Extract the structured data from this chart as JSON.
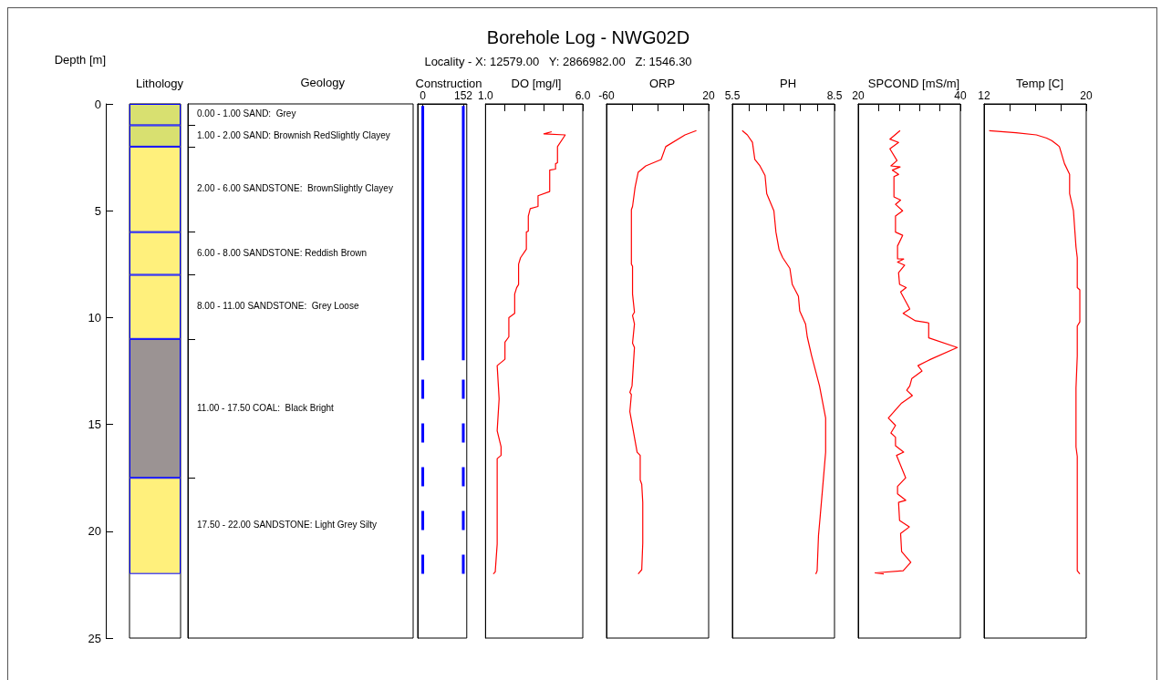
{
  "chart_data": [
    {
      "type": "other",
      "title": "Borehole Log - NWG02D",
      "subtitle": "Locality - X: 12579.00   Y: 2866982.00   Z: 1546.30"
    },
    {
      "type": "bar",
      "title": "Lithology",
      "ylabel": "Depth [m]",
      "stacked": true,
      "categories": [
        null
      ],
      "ylim": [
        25,
        0
      ],
      "yticks": [
        0,
        5,
        10,
        15,
        20,
        25
      ],
      "tick_labels": "y",
      "series": [
        {
          "color": "#d8e070",
          "values": [
            1
          ]
        },
        {
          "color": "#d8e070",
          "values": [
            1
          ]
        },
        {
          "color": "#fff07c",
          "values": [
            4
          ]
        },
        {
          "color": "#fff07c",
          "values": [
            2
          ]
        },
        {
          "color": "#fff07c",
          "values": [
            3
          ]
        },
        {
          "color": "#9b9393",
          "values": [
            6.5
          ]
        },
        {
          "color": "#fff07c",
          "values": [
            4.5
          ]
        }
      ],
      "annotations": [
        "Geology",
        "0.00 - 1.00 SAND:  Grey",
        "1.00 - 2.00 SAND: Brownish RedSlightly Clayey",
        "2.00 - 6.00 SANDSTONE:  BrownSlightly Clayey",
        "6.00 - 8.00 SANDSTONE: Reddish Brown",
        "8.00 - 11.00 SANDSTONE:  Grey Loose",
        "11.00 - 17.50 COAL:  Black Bright",
        "17.50 - 22.00 SANDSTONE: Light Grey Silty"
      ]
    },
    {
      "type": "line",
      "title": "Construction",
      "xlim": [
        -19,
        165
      ],
      "xticks": [
        0,
        152
      ],
      "ylim": [
        25,
        0
      ],
      "tick_labels": "x",
      "series": [
        {
          "color": "#0000ff",
          "x": [
            0,
            0
          ],
          "values": [
            0.1,
            12
          ]
        },
        {
          "color": "#0000ff",
          "x": [
            152,
            152
          ],
          "values": [
            0.1,
            12
          ]
        },
        {
          "color": "#0000ff",
          "x": [
            0,
            0
          ],
          "values": [
            12.9,
            22
          ],
          "line_style": "dashed"
        },
        {
          "color": "#0000ff",
          "x": [
            152,
            152
          ],
          "values": [
            12.9,
            22
          ],
          "line_style": "dashed"
        }
      ]
    },
    {
      "type": "line",
      "title": "DO [mg/l]",
      "xlim": [
        1,
        6
      ],
      "xticks": [
        {
          "value": 1,
          "label": "1.0"
        },
        {
          "value": 2,
          "label": null
        },
        {
          "value": 3,
          "label": null
        },
        {
          "value": 4,
          "label": null
        },
        {
          "value": 5,
          "label": null
        },
        {
          "value": 6,
          "label": "6.0"
        }
      ],
      "ylim": [
        25,
        0
      ],
      "tick_labels": "x",
      "series": [
        {
          "color": "#ff0000",
          "x": [
            4.4,
            4.0,
            5.1,
            4.7,
            4.7,
            4.6,
            4.6,
            4.3,
            4.3,
            3.7,
            3.7,
            3.3,
            3.2,
            3.2,
            3.1,
            3.1,
            2.8,
            2.7,
            2.7,
            2.6,
            2.5,
            2.5,
            2.2,
            2.2,
            2.0,
            2.0,
            1.6,
            1.7,
            1.6,
            1.8,
            1.8,
            1.6,
            1.6,
            1.5,
            1.4
          ],
          "values": [
            1.3,
            1.4,
            1.45,
            2.0,
            2.75,
            2.8,
            3.05,
            3.1,
            4.1,
            4.3,
            4.8,
            4.9,
            5.25,
            5.95,
            6.0,
            6.8,
            7.2,
            7.5,
            8.45,
            8.6,
            8.9,
            9.8,
            10.0,
            10.9,
            11.15,
            11.95,
            12.25,
            13.8,
            15.3,
            16.05,
            16.45,
            16.6,
            20.6,
            21.9,
            22.0
          ]
        }
      ]
    },
    {
      "type": "line",
      "title": "ORP",
      "xlim": [
        -60,
        20
      ],
      "xticks": [
        -60,
        {
          "value": -40,
          "label": null
        },
        {
          "value": -20,
          "label": null
        },
        {
          "value": 0,
          "label": null
        },
        20
      ],
      "ylim": [
        25,
        0
      ],
      "tick_labels": "x",
      "series": [
        {
          "color": "#ff0000",
          "x": [
            10.4,
            1.5,
            -13.6,
            -17.2,
            -29.2,
            -35.2,
            -37.6,
            -39.6,
            -40.5,
            -40.5,
            -39.6,
            -39.6,
            -38.1,
            -39.6,
            -38.1,
            -39.6,
            -38.1,
            -40.0,
            -41.7,
            -40.5,
            -41.7,
            -36.0,
            -33.6,
            -33.6,
            -32.4,
            -31.6,
            -31.6,
            -32.4,
            -35.2
          ],
          "values": [
            1.25,
            1.45,
            2.0,
            2.6,
            2.9,
            3.2,
            3.9,
            4.8,
            4.95,
            7.5,
            7.6,
            8.9,
            9.75,
            9.9,
            10.3,
            11.2,
            11.4,
            13.2,
            13.5,
            13.6,
            14.4,
            16.3,
            16.45,
            17.6,
            17.8,
            18.65,
            20.55,
            21.8,
            22.0
          ]
        }
      ]
    },
    {
      "type": "line",
      "title": "PH",
      "xlim": [
        5.5,
        8.5
      ],
      "xticks": [
        5.5,
        {
          "value": 6,
          "label": null
        },
        {
          "value": 6.5,
          "label": null
        },
        {
          "value": 7,
          "label": null
        },
        {
          "value": 7.5,
          "label": null
        },
        {
          "value": 8,
          "label": null
        },
        8.5
      ],
      "ylim": [
        25,
        0
      ],
      "tick_labels": "x",
      "series": [
        {
          "color": "#ff0000",
          "x": [
            5.79,
            5.94,
            6.09,
            6.16,
            6.31,
            6.46,
            6.51,
            6.72,
            6.78,
            6.87,
            6.98,
            7.19,
            7.26,
            7.44,
            7.48,
            7.65,
            7.7,
            7.83,
            8.06,
            8.24,
            8.24,
            8.15,
            8.08,
            8.03,
            7.99,
            7.95
          ],
          "values": [
            1.25,
            1.45,
            1.8,
            2.6,
            2.9,
            3.35,
            4.2,
            5.0,
            6.0,
            6.8,
            7.2,
            7.7,
            8.45,
            9.0,
            9.7,
            10.3,
            10.9,
            11.8,
            13.2,
            14.7,
            16.3,
            18.0,
            19.3,
            20.2,
            21.85,
            22.0
          ]
        }
      ]
    },
    {
      "type": "line",
      "title": "SPCOND [mS/m]",
      "xlim": [
        20,
        40
      ],
      "xticks": [
        20,
        {
          "value": 24,
          "label": null
        },
        {
          "value": 28,
          "label": null
        },
        {
          "value": 32,
          "label": null
        },
        {
          "value": 36,
          "label": null
        },
        40
      ],
      "ylim": [
        25,
        0
      ],
      "tick_labels": "x",
      "series": [
        {
          "color": "#ff0000",
          "x": [
            28.2,
            26.2,
            27.9,
            26.2,
            27.6,
            26.4,
            28.2,
            26.7,
            27.9,
            27.0,
            27.0,
            28.3,
            27.3,
            28.7,
            27.3,
            27.3,
            28.7,
            27.7,
            27.7,
            28.9,
            27.7,
            29.1,
            27.9,
            28.1,
            29.4,
            28.3,
            30.1,
            28.8,
            31.2,
            33.8,
            33.8,
            39.4,
            34.2,
            31.7,
            32.5,
            30.5,
            30.1,
            29.5,
            30.6,
            28.5,
            25.9,
            27.3,
            26.4,
            27.3,
            27.3,
            28.9,
            27.5,
            29.3,
            27.7,
            27.7,
            29.3,
            27.9,
            28.1,
            30.0,
            28.3,
            28.5,
            30.3,
            28.8,
            23.3,
            25.0
          ],
          "values": [
            1.25,
            1.65,
            1.8,
            2.1,
            2.65,
            2.9,
            2.95,
            3.1,
            3.3,
            3.4,
            4.35,
            4.5,
            4.7,
            5.0,
            5.25,
            6.0,
            6.15,
            6.65,
            7.25,
            7.26,
            7.4,
            7.55,
            7.9,
            8.45,
            8.6,
            8.8,
            9.6,
            9.8,
            10.15,
            10.25,
            10.95,
            11.4,
            11.95,
            12.25,
            12.5,
            12.85,
            13.2,
            13.4,
            13.65,
            14.0,
            14.7,
            15.05,
            15.4,
            15.6,
            16.0,
            16.3,
            16.45,
            17.5,
            17.9,
            18.25,
            18.55,
            18.65,
            19.5,
            19.8,
            20.1,
            20.95,
            21.45,
            21.85,
            21.95,
            22.0
          ]
        }
      ]
    },
    {
      "type": "line",
      "title": "Temp [C]",
      "xlim": [
        12,
        20
      ],
      "xticks": [
        12,
        {
          "value": 14,
          "label": null
        },
        {
          "value": 16,
          "label": null
        },
        {
          "value": 18,
          "label": null
        },
        20
      ],
      "ylim": [
        25,
        0
      ],
      "tick_labels": "x",
      "series": [
        {
          "color": "#ff0000",
          "x": [
            12.4,
            14.5,
            16.1,
            16.9,
            17.3,
            17.7,
            17.9,
            18.3,
            18.7,
            18.7,
            19.0,
            19.2,
            19.3,
            19.3,
            19.5,
            19.5,
            19.3,
            19.3,
            19.2,
            19.2,
            19.3,
            19.3,
            19.3,
            19.3,
            19.5
          ],
          "values": [
            1.25,
            1.35,
            1.45,
            1.6,
            1.72,
            1.9,
            2.0,
            2.8,
            3.3,
            4.2,
            5.0,
            6.7,
            7.2,
            8.6,
            8.7,
            10.2,
            10.4,
            11.8,
            13.3,
            16.05,
            16.5,
            18.1,
            18.65,
            21.85,
            22.0
          ]
        }
      ]
    }
  ]
}
